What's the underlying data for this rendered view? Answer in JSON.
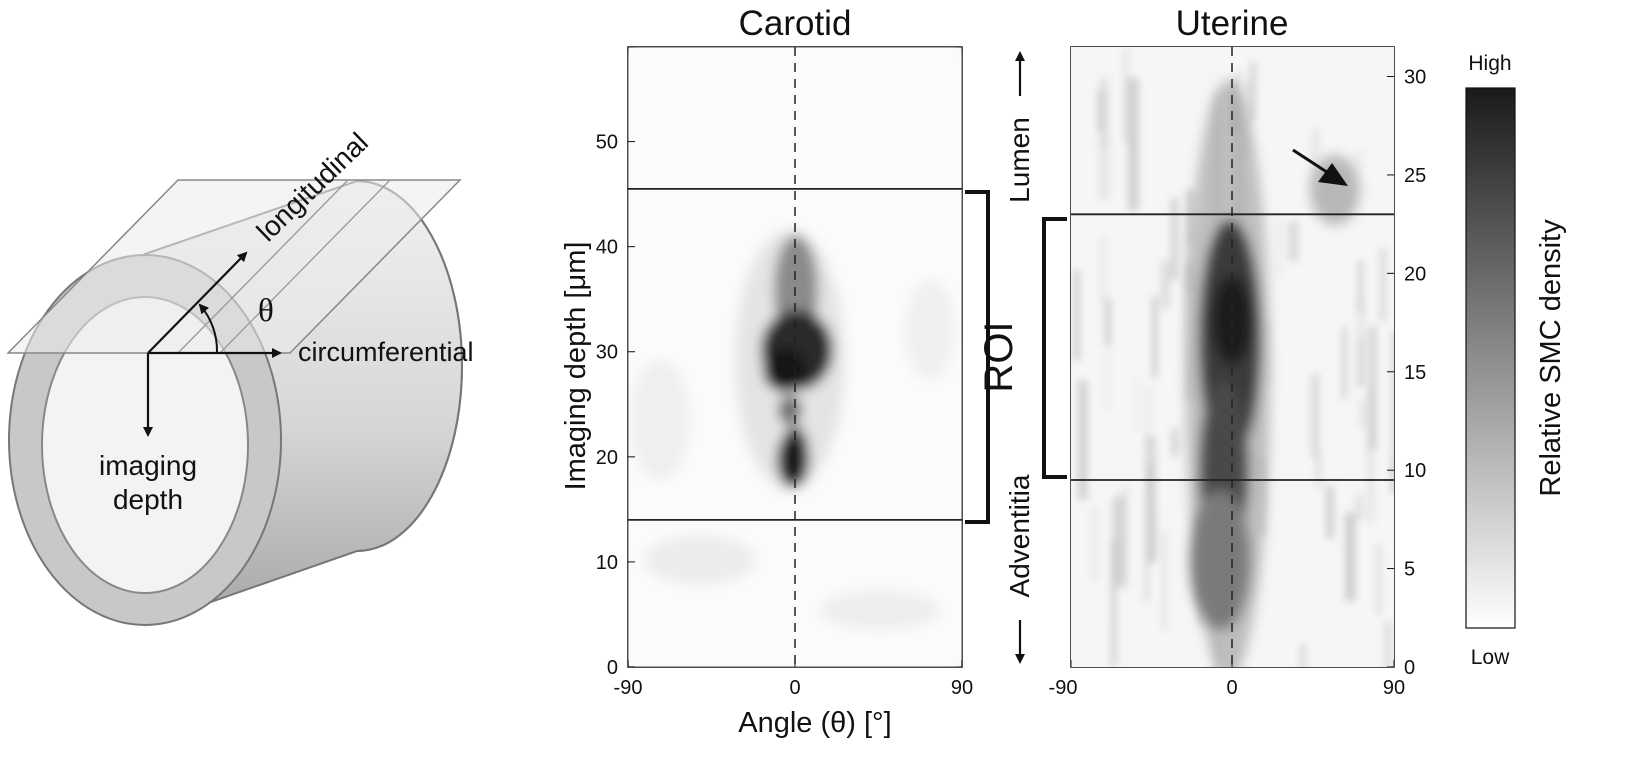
{
  "diagram": {
    "labels": {
      "longitudinal": "longitudinal",
      "circumferential": "circumferential",
      "theta": "θ",
      "imaging_depth_line1": "imaging",
      "imaging_depth_line2": "depth"
    }
  },
  "chart_data": [
    {
      "type": "heatmap",
      "title": "Carotid",
      "xlabel": "Angle (θ) [°]",
      "ylabel": "Imaging depth [μm]",
      "xlim": [
        -90,
        90
      ],
      "ylim": [
        0,
        59
      ],
      "xticks": [
        "-90",
        "0",
        "90"
      ],
      "yticks": [
        "0",
        "10",
        "20",
        "30",
        "40",
        "50"
      ],
      "ytick_values": [
        0,
        10,
        20,
        30,
        40,
        50
      ],
      "roi_lines": [
        14,
        45.5
      ],
      "center_line": 0,
      "intensity_peaks": [
        {
          "angle": 0,
          "depth": 30,
          "intensity": 0.95
        },
        {
          "angle": 0,
          "depth": 19.5,
          "intensity": 0.85
        },
        {
          "angle": 0,
          "depth": 37,
          "intensity": 0.45
        }
      ],
      "colormap": [
        "#ffffff",
        "#1a1a1a"
      ]
    },
    {
      "type": "heatmap",
      "title": "Uterine",
      "xlim": [
        -90,
        90
      ],
      "ylim": [
        0,
        31.5
      ],
      "xticks": [
        "-90",
        "0",
        "90"
      ],
      "yticks": [
        "0",
        "5",
        "10",
        "15",
        "20",
        "25",
        "30"
      ],
      "ytick_values": [
        0,
        5,
        10,
        15,
        20,
        25,
        30
      ],
      "roi_lines": [
        9.5,
        23
      ],
      "center_line": 0,
      "intensity_peaks": [
        {
          "angle": 0,
          "depth": 17,
          "intensity": 0.9
        },
        {
          "angle": -5,
          "depth": 8,
          "intensity": 0.7
        },
        {
          "angle": 72,
          "depth": 24.5,
          "intensity": 0.3
        }
      ],
      "arrow_annotation": {
        "angle": 70,
        "depth": 24.5
      },
      "colormap": [
        "#ffffff",
        "#1a1a1a"
      ]
    }
  ],
  "annotations": {
    "roi": "ROI",
    "lumen": "Lumen",
    "adventitia": "Adventitia"
  },
  "colorbar": {
    "label": "Relative SMC density",
    "high": "High",
    "low": "Low",
    "color_high": "#1a1a1a",
    "color_low": "#ffffff"
  }
}
